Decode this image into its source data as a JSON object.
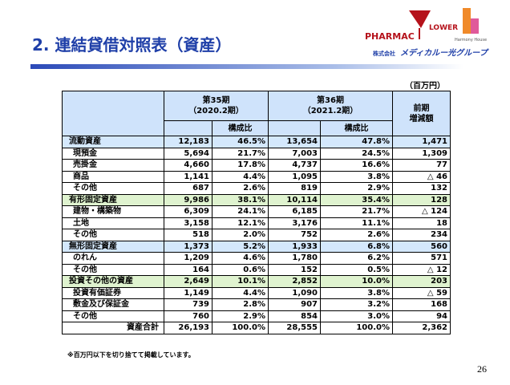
{
  "header": {
    "title": "2. 連結貸借対照表（資産）",
    "logos": {
      "pharmac": "PHARMAC",
      "lower": "LOWER",
      "harmony": "Harmony House",
      "company_prefix": "株式会社",
      "company": "メディカルー光グループ"
    }
  },
  "unit": "（百万円）",
  "table": {
    "head": {
      "p35": "第35期",
      "p35_sub": "（2020.2期）",
      "p36": "第36期",
      "p36_sub": "（2021.2期）",
      "ratio35": "構成比",
      "ratio36": "構成比",
      "diff": "前期",
      "diff_sub": "増減額"
    },
    "rows": [
      [
        "流動資産",
        "12,183",
        "46.5%",
        "13,654",
        "47.8%",
        "1,471"
      ],
      [
        "現預金",
        "5,694",
        "21.7%",
        "7,003",
        "24.5%",
        "1,309"
      ],
      [
        "売掛金",
        "4,660",
        "17.8%",
        "4,737",
        "16.6%",
        "77"
      ],
      [
        "商品",
        "1,141",
        "4.4%",
        "1,095",
        "3.8%",
        "△ 46"
      ],
      [
        "その他",
        "687",
        "2.6%",
        "819",
        "2.9%",
        "132"
      ],
      [
        "有形固定資産",
        "9,986",
        "38.1%",
        "10,114",
        "35.4%",
        "128"
      ],
      [
        "建物・構築物",
        "6,309",
        "24.1%",
        "6,185",
        "21.7%",
        "△ 124"
      ],
      [
        "土地",
        "3,158",
        "12.1%",
        "3,176",
        "11.1%",
        "18"
      ],
      [
        "その他",
        "518",
        "2.0%",
        "752",
        "2.6%",
        "234"
      ],
      [
        "無形固定資産",
        "1,373",
        "5.2%",
        "1,933",
        "6.8%",
        "560"
      ],
      [
        "のれん",
        "1,209",
        "4.6%",
        "1,780",
        "6.2%",
        "571"
      ],
      [
        "その他",
        "164",
        "0.6%",
        "152",
        "0.5%",
        "△ 12"
      ],
      [
        "投資その他の資産",
        "2,649",
        "10.1%",
        "2,852",
        "10.0%",
        "203"
      ],
      [
        "投資有価証券",
        "1,149",
        "4.4%",
        "1,090",
        "3.8%",
        "△ 59"
      ],
      [
        "敷金及び保証金",
        "739",
        "2.8%",
        "907",
        "3.2%",
        "168"
      ],
      [
        "その他",
        "760",
        "2.9%",
        "854",
        "3.0%",
        "94"
      ],
      [
        "資産合計",
        "26,193",
        "100.0%",
        "28,555",
        "100.0%",
        "2,362"
      ]
    ]
  },
  "footnote": "※百万円以下を切り捨てて掲載しています。",
  "page_number": "26"
}
